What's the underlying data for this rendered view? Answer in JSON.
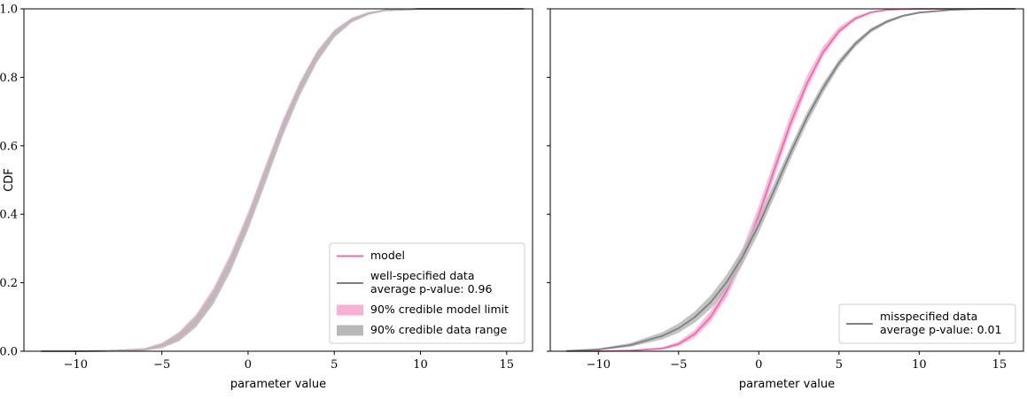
{
  "chart_data": [
    {
      "type": "line",
      "title": "",
      "xlabel": "parameter value",
      "ylabel": "CDF",
      "xlim": [
        -13,
        16.5
      ],
      "ylim": [
        0,
        1
      ],
      "xticks": [
        -10,
        -5,
        0,
        5,
        10,
        15
      ],
      "xtick_labels": [
        "−10",
        "−5",
        "0",
        "5",
        "10",
        "15"
      ],
      "yticks": [
        0.0,
        0.2,
        0.4,
        0.6,
        0.8,
        1.0
      ],
      "ytick_labels": [
        "0.0",
        "0.2",
        "0.4",
        "0.6",
        "0.8",
        "1.0"
      ],
      "grid": false,
      "legend_position": "bottom-right",
      "x": [
        -12,
        -10,
        -8,
        -6,
        -5,
        -4,
        -3,
        -2,
        -1,
        0,
        1,
        2,
        3,
        4,
        5,
        6,
        7,
        8,
        10,
        12,
        16
      ],
      "series": [
        {
          "name": "model",
          "kind": "line",
          "color": "#ee6ab2",
          "values": [
            0,
            0,
            0.001,
            0.006,
            0.018,
            0.045,
            0.093,
            0.166,
            0.265,
            0.385,
            0.52,
            0.655,
            0.77,
            0.865,
            0.93,
            0.968,
            0.988,
            0.996,
            1,
            1,
            1
          ]
        },
        {
          "name": "well-specified data\naverage p-value: 0.96",
          "kind": "line",
          "color": "#808080",
          "values": [
            0,
            0,
            0.001,
            0.005,
            0.015,
            0.04,
            0.086,
            0.158,
            0.256,
            0.376,
            0.512,
            0.648,
            0.765,
            0.86,
            0.927,
            0.966,
            0.987,
            0.996,
            1,
            1,
            1
          ]
        },
        {
          "name": "90% credible model limit",
          "kind": "band",
          "color": "#f8b0d5",
          "lower": [
            0,
            0,
            0,
            0.003,
            0.011,
            0.033,
            0.077,
            0.146,
            0.243,
            0.363,
            0.498,
            0.635,
            0.753,
            0.85,
            0.92,
            0.962,
            0.984,
            0.994,
            0.999,
            1,
            1
          ],
          "upper": [
            0,
            0,
            0.002,
            0.009,
            0.025,
            0.057,
            0.109,
            0.186,
            0.287,
            0.407,
            0.542,
            0.675,
            0.787,
            0.878,
            0.939,
            0.974,
            0.991,
            0.998,
            1,
            1,
            1
          ]
        },
        {
          "name": "90% credible data range",
          "kind": "band",
          "color": "#b8b8b8",
          "lower": [
            0,
            0,
            0,
            0.002,
            0.009,
            0.029,
            0.071,
            0.138,
            0.234,
            0.354,
            0.489,
            0.627,
            0.746,
            0.844,
            0.916,
            0.96,
            0.983,
            0.994,
            0.999,
            1,
            1
          ],
          "upper": [
            0,
            0,
            0.002,
            0.008,
            0.022,
            0.053,
            0.103,
            0.178,
            0.278,
            0.398,
            0.535,
            0.668,
            0.782,
            0.874,
            0.936,
            0.972,
            0.99,
            0.998,
            1,
            1,
            1
          ]
        }
      ]
    },
    {
      "type": "line",
      "title": "",
      "xlabel": "parameter value",
      "ylabel": "",
      "xlim": [
        -13,
        16.5
      ],
      "ylim": [
        0,
        1
      ],
      "xticks": [
        -10,
        -5,
        0,
        5,
        10,
        15
      ],
      "xtick_labels": [
        "−10",
        "−5",
        "0",
        "5",
        "10",
        "15"
      ],
      "yticks": [
        0.0,
        0.2,
        0.4,
        0.6,
        0.8,
        1.0
      ],
      "ytick_labels": [
        "",
        "",
        "",
        "",
        "",
        ""
      ],
      "grid": false,
      "legend_position": "bottom-right",
      "x": [
        -12,
        -10,
        -8,
        -6,
        -5,
        -4,
        -3,
        -2,
        -1,
        0,
        1,
        2,
        3,
        4,
        5,
        6,
        7,
        8,
        9,
        10,
        12,
        14,
        16
      ],
      "series": [
        {
          "name": "",
          "kind": "band",
          "color": "#f8b0d5",
          "lower": [
            0,
            0,
            0.001,
            0.005,
            0.015,
            0.04,
            0.086,
            0.158,
            0.256,
            0.376,
            0.512,
            0.648,
            0.765,
            0.86,
            0.927,
            0.966,
            0.987,
            0.996,
            0.999,
            1,
            1,
            1,
            1
          ],
          "upper": [
            0,
            0,
            0.003,
            0.012,
            0.028,
            0.062,
            0.118,
            0.198,
            0.302,
            0.425,
            0.562,
            0.695,
            0.805,
            0.89,
            0.947,
            0.978,
            0.993,
            0.999,
            1,
            1,
            1,
            1,
            1
          ]
        },
        {
          "name": "",
          "kind": "line",
          "color": "#ee6ab2",
          "values": [
            0,
            0,
            0.002,
            0.008,
            0.021,
            0.05,
            0.1,
            0.176,
            0.277,
            0.398,
            0.535,
            0.668,
            0.782,
            0.873,
            0.935,
            0.971,
            0.99,
            0.997,
            0.999,
            1,
            1,
            1,
            1
          ]
        },
        {
          "name": "",
          "kind": "band",
          "color": "#b8b8b8",
          "lower": [
            0,
            0.003,
            0.013,
            0.035,
            0.054,
            0.083,
            0.124,
            0.18,
            0.254,
            0.346,
            0.453,
            0.562,
            0.664,
            0.753,
            0.83,
            0.888,
            0.931,
            0.958,
            0.976,
            0.986,
            0.995,
            0.999,
            1
          ],
          "upper": [
            0.002,
            0.008,
            0.024,
            0.056,
            0.081,
            0.116,
            0.163,
            0.224,
            0.3,
            0.392,
            0.496,
            0.6,
            0.698,
            0.782,
            0.852,
            0.905,
            0.944,
            0.968,
            0.983,
            0.992,
            0.998,
            1,
            1
          ]
        },
        {
          "name": "misspecified data\naverage p-value: 0.01",
          "kind": "line",
          "color": "#808080",
          "values": [
            0.001,
            0.005,
            0.018,
            0.045,
            0.067,
            0.099,
            0.143,
            0.202,
            0.277,
            0.369,
            0.475,
            0.582,
            0.682,
            0.768,
            0.842,
            0.897,
            0.938,
            0.963,
            0.98,
            0.989,
            0.997,
            1,
            1
          ]
        }
      ]
    }
  ]
}
